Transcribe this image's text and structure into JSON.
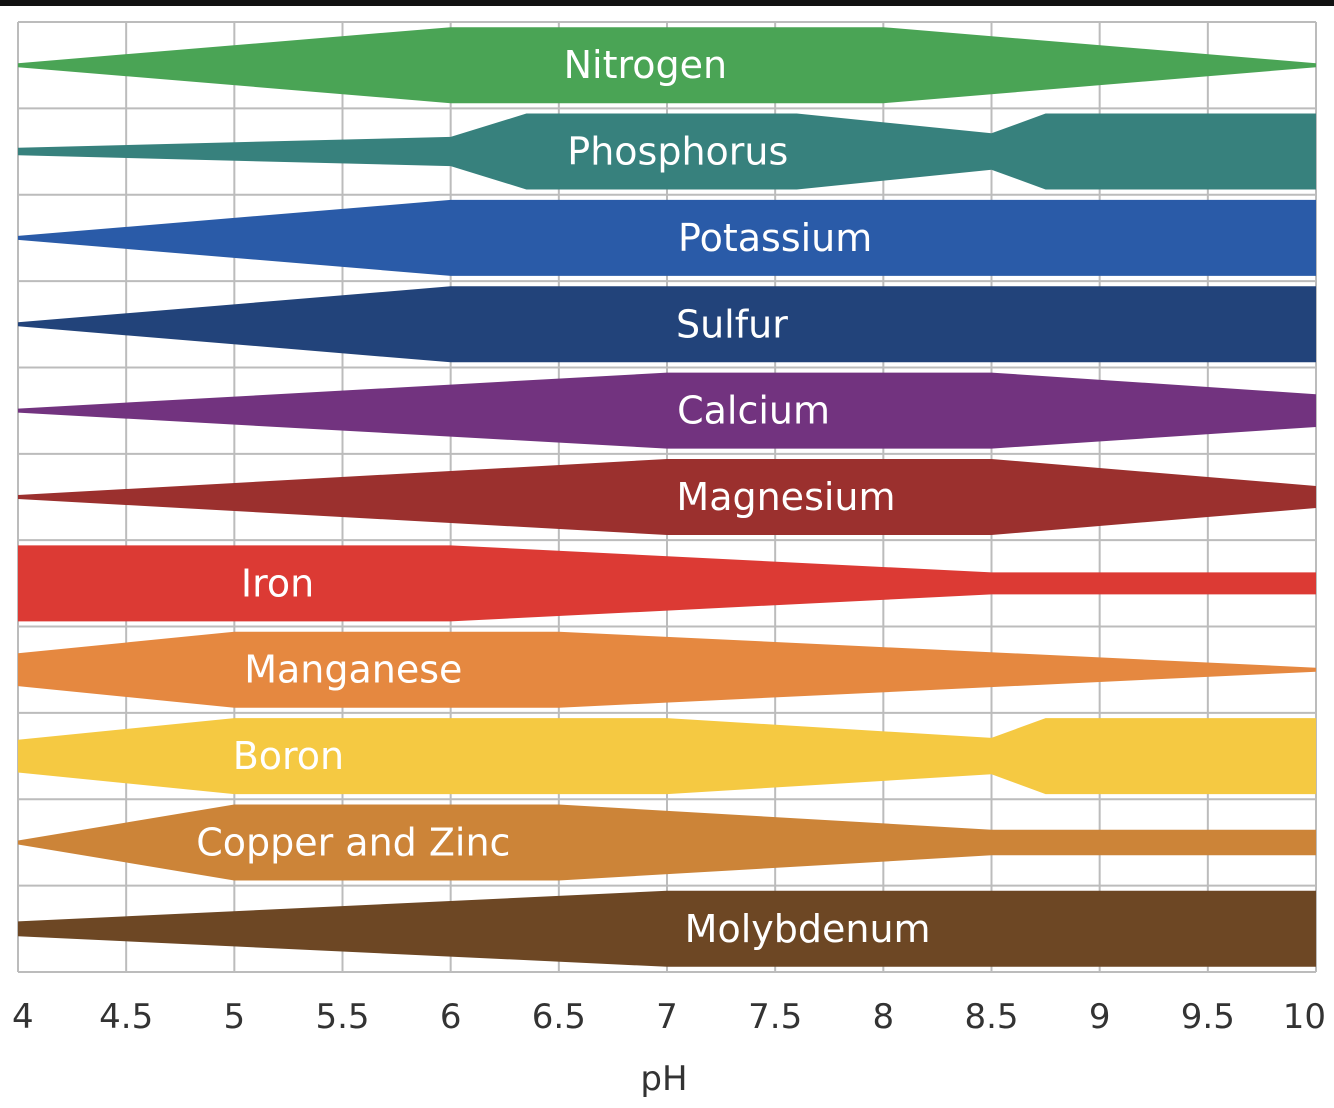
{
  "chart_data": {
    "type": "area",
    "title": "",
    "xlabel": "pH",
    "ylabel": "",
    "xlim": [
      4,
      10
    ],
    "grid": true,
    "x_ticks": [
      "4",
      "4.5",
      "5",
      "5.5",
      "6",
      "6.5",
      "7",
      "7.5",
      "8",
      "8.5",
      "9",
      "9.5",
      "10"
    ],
    "series": [
      {
        "name": "Nitrogen",
        "color": "#4aa455",
        "label_x": 6.9,
        "points": [
          [
            4,
            0.0
          ],
          [
            6,
            1.0
          ],
          [
            8,
            1.0
          ],
          [
            10,
            0.0
          ]
        ]
      },
      {
        "name": "Phosphorus",
        "color": "#37817d",
        "label_x": 7.05,
        "points": [
          [
            4,
            0.05
          ],
          [
            6,
            0.35
          ],
          [
            6.35,
            1.0
          ],
          [
            7.6,
            1.0
          ],
          [
            8.5,
            0.45
          ],
          [
            8.75,
            1.0
          ],
          [
            10,
            1.0
          ]
        ]
      },
      {
        "name": "Potassium",
        "color": "#2a5ba8",
        "label_x": 7.5,
        "points": [
          [
            4,
            0.0
          ],
          [
            6,
            1.0
          ],
          [
            10,
            1.0
          ]
        ]
      },
      {
        "name": "Sulfur",
        "color": "#22437a",
        "label_x": 7.3,
        "points": [
          [
            4,
            0.0
          ],
          [
            6,
            1.0
          ],
          [
            10,
            1.0
          ]
        ]
      },
      {
        "name": "Calcium",
        "color": "#72337f",
        "label_x": 7.4,
        "points": [
          [
            4,
            0.0
          ],
          [
            7,
            1.0
          ],
          [
            8.5,
            1.0
          ],
          [
            10,
            0.4
          ]
        ]
      },
      {
        "name": "Magnesium",
        "color": "#9b302e",
        "label_x": 7.55,
        "points": [
          [
            4,
            0.0
          ],
          [
            7,
            1.0
          ],
          [
            8.5,
            1.0
          ],
          [
            10,
            0.25
          ]
        ]
      },
      {
        "name": "Iron",
        "color": "#dc3a34",
        "label_x": 5.2,
        "points": [
          [
            4,
            1.0
          ],
          [
            6,
            1.0
          ],
          [
            8.5,
            0.25
          ],
          [
            10,
            0.25
          ]
        ]
      },
      {
        "name": "Manganese",
        "color": "#e58840",
        "label_x": 5.55,
        "points": [
          [
            4,
            0.4
          ],
          [
            5,
            1.0
          ],
          [
            6.5,
            1.0
          ],
          [
            10,
            0.0
          ]
        ]
      },
      {
        "name": "Boron",
        "color": "#f5c942",
        "label_x": 5.25,
        "points": [
          [
            4,
            0.4
          ],
          [
            5,
            1.0
          ],
          [
            7,
            1.0
          ],
          [
            8.5,
            0.45
          ],
          [
            8.75,
            1.0
          ],
          [
            10,
            1.0
          ]
        ]
      },
      {
        "name": "Copper and Zinc",
        "color": "#cc8438",
        "label_x": 5.55,
        "points": [
          [
            4,
            0.0
          ],
          [
            5,
            1.0
          ],
          [
            6.5,
            1.0
          ],
          [
            8.5,
            0.3
          ],
          [
            10,
            0.3
          ]
        ]
      },
      {
        "name": "Molybdenum",
        "color": "#6d4724",
        "label_x": 7.65,
        "points": [
          [
            4,
            0.15
          ],
          [
            7,
            1.0
          ],
          [
            10,
            1.0
          ]
        ]
      }
    ]
  }
}
